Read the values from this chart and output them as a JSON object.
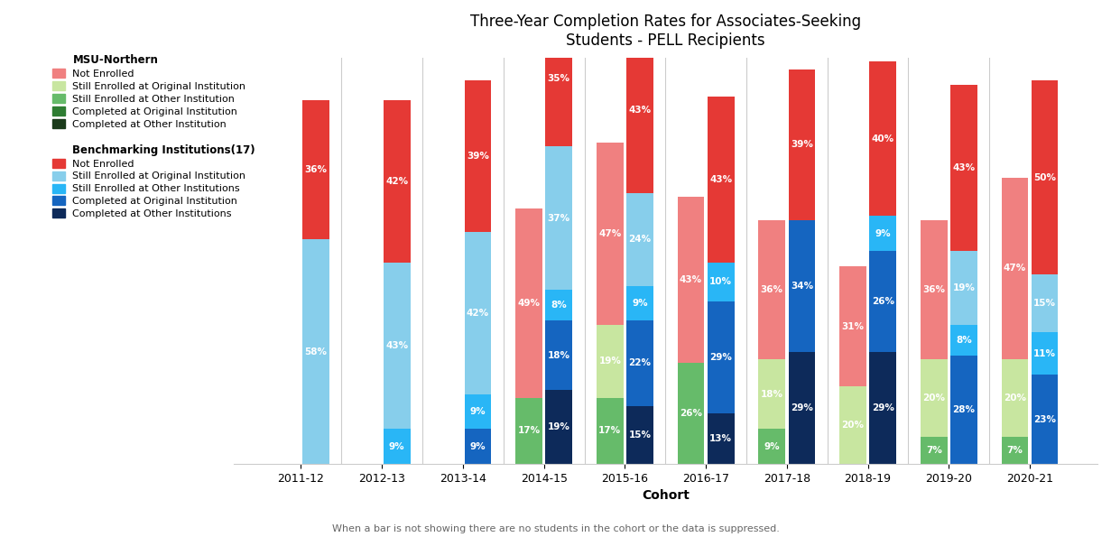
{
  "title": "Three-Year Completion Rates for Associates-Seeking\nStudents - PELL Recipients",
  "xlabel": "Cohort",
  "footnote": "When a bar is not showing there are no students in the cohort or the data is suppressed.",
  "cohorts": [
    "2011-12",
    "2012-13",
    "2013-14",
    "2014-15",
    "2015-16",
    "2016-17",
    "2017-18",
    "2018-19",
    "2019-20",
    "2020-21"
  ],
  "msu_colors_bottom_to_top": [
    "#1a3a1a",
    "#2e7d32",
    "#66bb6a",
    "#c8e6a0",
    "#f08080"
  ],
  "bench_colors_bottom_to_top": [
    "#0d2a5a",
    "#1565c0",
    "#29b6f6",
    "#87ceeb",
    "#e53935"
  ],
  "msu_labels": [
    "Not Enrolled",
    "Still Enrolled at Original Institution",
    "Still Enrolled at Other Institution",
    "Completed at Original Institution",
    "Completed at Other Institution"
  ],
  "bench_labels": [
    "Not Enrolled",
    "Still Enrolled at Original Institution",
    "Still Enrolled at Other Institutions",
    "Completed at Original Institution",
    "Completed at Other Institutions"
  ],
  "msu_stacks": {
    "2011-12": [
      0,
      0,
      0,
      0,
      0
    ],
    "2012-13": [
      0,
      0,
      0,
      0,
      0
    ],
    "2013-14": [
      0,
      0,
      0,
      0,
      0
    ],
    "2014-15": [
      0,
      0,
      17,
      0,
      49
    ],
    "2015-16": [
      0,
      0,
      17,
      19,
      47
    ],
    "2016-17": [
      0,
      0,
      26,
      0,
      43
    ],
    "2017-18": [
      0,
      0,
      9,
      18,
      36
    ],
    "2018-19": [
      0,
      0,
      0,
      20,
      31
    ],
    "2019-20": [
      0,
      0,
      7,
      20,
      36
    ],
    "2020-21": [
      0,
      0,
      7,
      20,
      47
    ]
  },
  "bench_stacks": {
    "2011-12": [
      0,
      0,
      0,
      58,
      36
    ],
    "2012-13": [
      0,
      0,
      9,
      43,
      42
    ],
    "2013-14": [
      0,
      9,
      9,
      42,
      39
    ],
    "2014-15": [
      19,
      18,
      8,
      37,
      35
    ],
    "2015-16": [
      15,
      22,
      9,
      24,
      43
    ],
    "2016-17": [
      13,
      29,
      10,
      0,
      43
    ],
    "2017-18": [
      29,
      34,
      0,
      0,
      39
    ],
    "2018-19": [
      29,
      26,
      9,
      0,
      40
    ],
    "2019-20": [
      0,
      28,
      8,
      19,
      43
    ],
    "2020-21": [
      0,
      23,
      11,
      15,
      50
    ]
  },
  "background_color": "#ffffff"
}
